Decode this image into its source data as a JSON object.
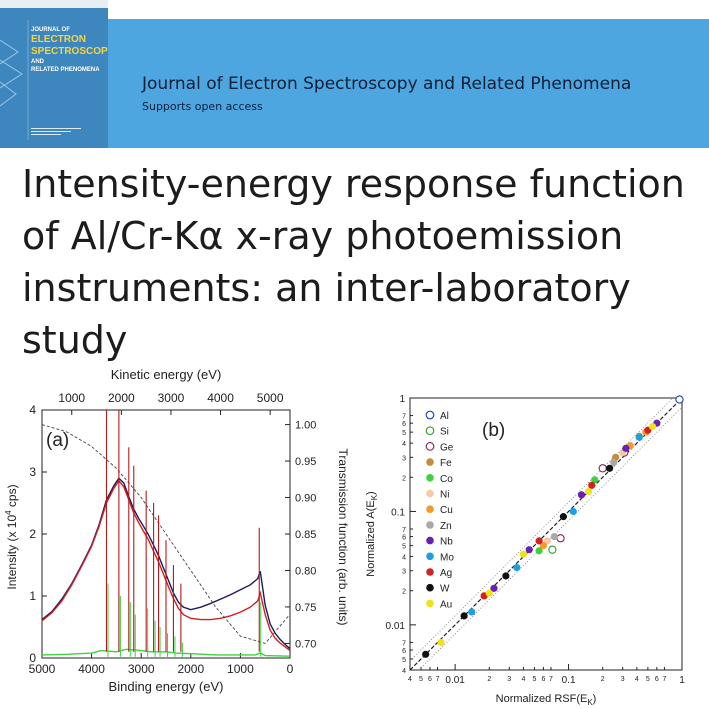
{
  "header": {
    "cover": {
      "title_lines": [
        "JOURNAL OF",
        "ELECTRON",
        "SPECTROSCOPY",
        "AND",
        "RELATED PHENOMENA"
      ],
      "bg_color": "#3d86be",
      "accent_color": "#f2d54a"
    },
    "journal_name": "Journal of Electron Spectroscopy and Related Phenomena",
    "access_note": "Supports open access",
    "bg_color": "#4ea6e0"
  },
  "paper": {
    "title": "Intensity-energy response function of Al/Cr-Kα x-ray photoemission instruments: an inter-laboratory study"
  },
  "chart_data": [
    {
      "type": "line",
      "panel_label": "(a)",
      "xlabel": "Binding energy (eV)",
      "x2label": "Kinetic energy (eV)",
      "ylabel": "Intensity (x 10",
      "ylabel_exp": "4",
      "ylabel_unit": " cps)",
      "y2label": "Transmission function (arb. units)",
      "xlim": [
        5000,
        0
      ],
      "ylim": [
        0,
        4
      ],
      "x2lim": [
        400,
        5400
      ],
      "y2lim": [
        0.68,
        1.02
      ],
      "x_ticks": [
        "5000",
        "4000",
        "3000",
        "2000",
        "1000",
        "0"
      ],
      "y_ticks": [
        "0",
        "1",
        "2",
        "3",
        "4"
      ],
      "x2_ticks": [
        "1000",
        "2000",
        "3000",
        "4000",
        "5000"
      ],
      "y2_ticks": [
        "0.70",
        "0.75",
        "0.80",
        "0.85",
        "0.90",
        "0.95",
        "1.00"
      ],
      "series": [
        {
          "color": "#1c1c5e",
          "x": [
            5000,
            4800,
            4600,
            4400,
            4200,
            4000,
            3850,
            3700,
            3550,
            3450,
            3350,
            3250,
            3150,
            3050,
            2950,
            2850,
            2750,
            2650,
            2550,
            2450,
            2350,
            2250,
            2150,
            2000,
            1800,
            1600,
            1400,
            1200,
            1000,
            800,
            650,
            600,
            500,
            400,
            300,
            200,
            100,
            0
          ],
          "y": [
            0.62,
            0.75,
            0.95,
            1.2,
            1.5,
            1.82,
            2.15,
            2.55,
            2.78,
            2.9,
            2.82,
            2.6,
            2.4,
            2.25,
            2.12,
            1.98,
            1.82,
            1.65,
            1.45,
            1.25,
            1.05,
            0.9,
            0.82,
            0.78,
            0.82,
            0.88,
            0.95,
            1.02,
            1.1,
            1.18,
            1.28,
            1.4,
            0.85,
            0.55,
            0.4,
            0.3,
            0.22,
            0.15
          ]
        },
        {
          "color": "#d42020",
          "x": [
            5000,
            4800,
            4600,
            4400,
            4200,
            4000,
            3850,
            3700,
            3550,
            3450,
            3350,
            3250,
            3150,
            3050,
            2950,
            2850,
            2750,
            2650,
            2550,
            2450,
            2350,
            2250,
            2150,
            2000,
            1800,
            1600,
            1400,
            1200,
            1000,
            800,
            650,
            600,
            500,
            400,
            300,
            200,
            100,
            0
          ],
          "y": [
            0.6,
            0.73,
            0.92,
            1.18,
            1.48,
            1.8,
            2.12,
            2.5,
            2.74,
            2.86,
            2.76,
            2.55,
            2.34,
            2.18,
            2.04,
            1.9,
            1.72,
            1.55,
            1.35,
            1.15,
            0.96,
            0.8,
            0.7,
            0.64,
            0.62,
            0.62,
            0.64,
            0.68,
            0.74,
            0.82,
            0.92,
            1.05,
            0.7,
            0.45,
            0.32,
            0.24,
            0.18,
            0.12
          ]
        },
        {
          "color": "#3ed23e",
          "x": [
            5000,
            4500,
            4000,
            3800,
            3500,
            3300,
            3000,
            2800,
            2500,
            2300,
            2000,
            1500,
            1000,
            700,
            600,
            500,
            0
          ],
          "y": [
            0.05,
            0.06,
            0.08,
            0.12,
            0.1,
            0.14,
            0.12,
            0.1,
            0.1,
            0.08,
            0.07,
            0.05,
            0.05,
            0.05,
            0.08,
            0.04,
            0.03
          ]
        },
        {
          "color": "#444444",
          "dashed": true,
          "axis": "right",
          "x": [
            5000,
            4500,
            4000,
            3500,
            3000,
            2500,
            2000,
            1500,
            1000,
            500,
            0
          ],
          "y2": [
            1.0,
            0.99,
            0.97,
            0.94,
            0.9,
            0.85,
            0.8,
            0.75,
            0.71,
            0.7,
            0.74
          ]
        }
      ],
      "peaks": [
        {
          "x": 3700,
          "height": 4.0,
          "green_height": 1.2
        },
        {
          "x": 3450,
          "height": 4.0,
          "green_height": 1.0
        },
        {
          "x": 3250,
          "height": 3.4,
          "green_height": 0.9
        },
        {
          "x": 3150,
          "height": 3.1,
          "green_height": 0.7
        },
        {
          "x": 2900,
          "height": 2.7,
          "green_height": 0.8
        },
        {
          "x": 2750,
          "height": 2.5,
          "green_height": 0.6
        },
        {
          "x": 2650,
          "height": 2.3,
          "green_height": 0.5
        },
        {
          "x": 2500,
          "height": 1.9,
          "green_height": 0.4
        },
        {
          "x": 2350,
          "height": 1.5,
          "green_height": 0.35
        },
        {
          "x": 2200,
          "height": 1.2,
          "green_height": 0.25
        },
        {
          "x": 620,
          "height": 2.1,
          "green_height": 0.9
        }
      ]
    },
    {
      "type": "scatter",
      "panel_label": "(b)",
      "xlabel": "Normalized RSF(E",
      "xlabel_sub": "K",
      "xlabel_end": ")",
      "ylabel": "Normalized A(E",
      "ylabel_sub": "K",
      "ylabel_end": ")",
      "scale": "log",
      "xlim": [
        0.004,
        1.0
      ],
      "ylim": [
        0.004,
        1.0
      ],
      "x_ticks": [
        "0.01",
        "0.1",
        "1"
      ],
      "y_ticks": [
        "0.01",
        "0.1",
        "1"
      ],
      "minor_labels": [
        "4",
        "5",
        "6",
        "7",
        "2",
        "3",
        "4",
        "5",
        "6",
        "7",
        "2",
        "3",
        "4",
        "5",
        "6",
        "7"
      ],
      "legend_position": "top-left",
      "series": [
        {
          "name": "Al",
          "color": "#1f3fb5",
          "hollow": true,
          "x": [
            0.95
          ],
          "y": [
            0.97
          ]
        },
        {
          "name": "Si",
          "color": "#2a9a2a",
          "hollow": true,
          "x": [
            0.072
          ],
          "y": [
            0.046
          ]
        },
        {
          "name": "Ge",
          "color": "#8a1f4a",
          "hollow": true,
          "x": [
            0.085,
            0.2,
            0.31
          ],
          "y": [
            0.058,
            0.24,
            0.33
          ]
        },
        {
          "name": "Fe",
          "color": "#c58a3a",
          "x": [
            0.26,
            0.42
          ],
          "y": [
            0.3,
            0.46
          ]
        },
        {
          "name": "Co",
          "color": "#3ed23e",
          "x": [
            0.055,
            0.17
          ],
          "y": [
            0.045,
            0.19
          ]
        },
        {
          "name": "Ni",
          "color": "#f5c8a8",
          "x": [
            0.065,
            0.3
          ],
          "y": [
            0.055,
            0.33
          ]
        },
        {
          "name": "Cu",
          "color": "#f29a2a",
          "x": [
            0.06,
            0.35,
            0.48
          ],
          "y": [
            0.05,
            0.38,
            0.5
          ]
        },
        {
          "name": "Zn",
          "color": "#a8a8a8",
          "x": [
            0.075,
            0.25
          ],
          "y": [
            0.06,
            0.27
          ]
        },
        {
          "name": "Nb",
          "color": "#6a1fb5",
          "x": [
            0.022,
            0.045,
            0.13,
            0.32,
            0.6
          ],
          "y": [
            0.021,
            0.046,
            0.14,
            0.36,
            0.6
          ]
        },
        {
          "name": "Mo",
          "color": "#1ea0e0",
          "x": [
            0.014,
            0.035,
            0.11,
            0.42
          ],
          "y": [
            0.013,
            0.032,
            0.1,
            0.45
          ]
        },
        {
          "name": "Ag",
          "color": "#d42020",
          "x": [
            0.018,
            0.055,
            0.16,
            0.5
          ],
          "y": [
            0.018,
            0.055,
            0.17,
            0.52
          ]
        },
        {
          "name": "W",
          "color": "#111111",
          "x": [
            0.0055,
            0.012,
            0.028,
            0.09,
            0.23
          ],
          "y": [
            0.0055,
            0.012,
            0.027,
            0.09,
            0.24
          ]
        },
        {
          "name": "Au",
          "color": "#f2e21a",
          "x": [
            0.0075,
            0.02,
            0.04,
            0.15,
            0.55
          ],
          "y": [
            0.007,
            0.019,
            0.042,
            0.15,
            0.56
          ]
        }
      ],
      "reference_lines": [
        "y = x (dashed)",
        "±20 % bounds (dotted)"
      ]
    }
  ]
}
